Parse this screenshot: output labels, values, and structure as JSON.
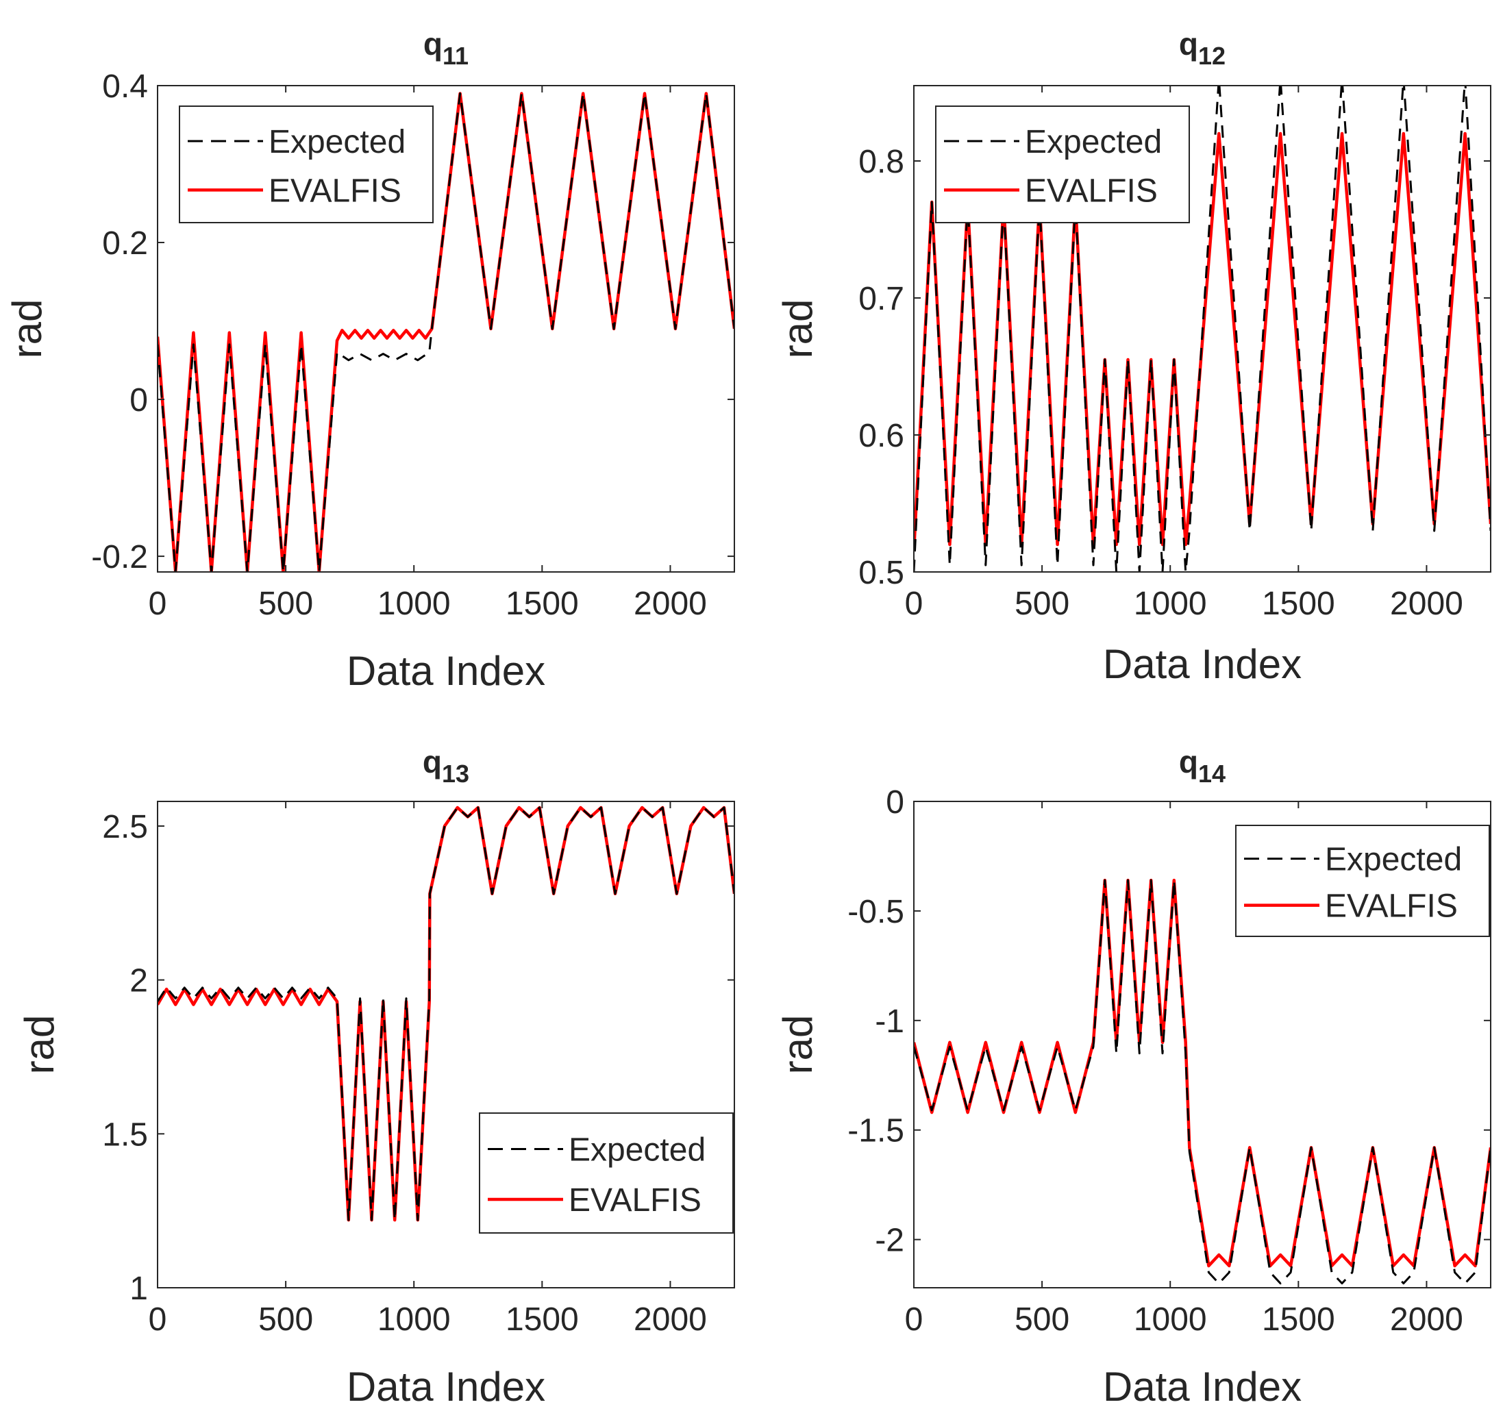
{
  "colors": {
    "expected": "#000000",
    "evalfis": "#ff0000",
    "axes": "#262626"
  },
  "chart_data": [
    {
      "type": "line",
      "title": "q",
      "title_sub": "11",
      "xlabel": "Data Index",
      "ylabel": "rad",
      "xlim": [
        0,
        2250
      ],
      "ylim": [
        -0.22,
        0.4
      ],
      "xticks": [
        0,
        500,
        1000,
        1500,
        2000
      ],
      "xtick_labels": [
        "0",
        "500",
        "1000",
        "1500",
        "2000"
      ],
      "yticks": [
        -0.2,
        0,
        0.2,
        0.4
      ],
      "ytick_labels": [
        "-0.2",
        "0",
        "0.2",
        "0.4"
      ],
      "legend_position": "top-left",
      "series": [
        {
          "name": "Expected",
          "style": "dashed",
          "x": [
            0,
            70,
            140,
            210,
            280,
            350,
            420,
            490,
            560,
            630,
            700,
            745,
            790,
            835,
            880,
            925,
            970,
            1015,
            1060,
            1070,
            1180,
            1300,
            1420,
            1540,
            1660,
            1780,
            1900,
            2020,
            2140,
            2250
          ],
          "y": [
            0.07,
            -0.22,
            0.07,
            -0.22,
            0.07,
            -0.22,
            0.07,
            -0.22,
            0.07,
            -0.22,
            0.06,
            0.05,
            0.058,
            0.05,
            0.058,
            0.05,
            0.058,
            0.05,
            0.06,
            0.09,
            0.39,
            0.09,
            0.39,
            0.09,
            0.39,
            0.09,
            0.39,
            0.09,
            0.39,
            0.09
          ]
        },
        {
          "name": "EVALFIS",
          "style": "solid",
          "x": [
            0,
            70,
            140,
            210,
            280,
            350,
            420,
            490,
            560,
            630,
            700,
            720,
            745,
            770,
            795,
            820,
            845,
            870,
            895,
            920,
            945,
            970,
            995,
            1020,
            1045,
            1070,
            1180,
            1300,
            1420,
            1540,
            1660,
            1780,
            1900,
            2020,
            2140,
            2250
          ],
          "y": [
            0.08,
            -0.22,
            0.085,
            -0.22,
            0.085,
            -0.22,
            0.085,
            -0.22,
            0.085,
            -0.22,
            0.075,
            0.088,
            0.078,
            0.088,
            0.078,
            0.088,
            0.078,
            0.088,
            0.078,
            0.088,
            0.078,
            0.088,
            0.078,
            0.088,
            0.078,
            0.09,
            0.39,
            0.09,
            0.39,
            0.09,
            0.39,
            0.09,
            0.39,
            0.09,
            0.39,
            0.09
          ]
        }
      ]
    },
    {
      "type": "line",
      "title": "q",
      "title_sub": "12",
      "xlabel": "Data Index",
      "ylabel": "rad",
      "xlim": [
        0,
        2250
      ],
      "ylim": [
        0.5,
        0.855
      ],
      "xticks": [
        0,
        500,
        1000,
        1500,
        2000
      ],
      "xtick_labels": [
        "0",
        "500",
        "1000",
        "1500",
        "2000"
      ],
      "yticks": [
        0.5,
        0.6,
        0.7,
        0.8
      ],
      "ytick_labels": [
        "0.5",
        "0.6",
        "0.7",
        "0.8"
      ],
      "legend_position": "top-left",
      "series": [
        {
          "name": "Expected",
          "style": "dashed",
          "x": [
            0,
            70,
            140,
            210,
            280,
            350,
            420,
            490,
            560,
            630,
            700,
            745,
            790,
            835,
            880,
            925,
            970,
            1015,
            1060,
            1075,
            1190,
            1310,
            1430,
            1550,
            1670,
            1790,
            1910,
            2030,
            2150,
            2250
          ],
          "y": [
            0.5,
            0.77,
            0.505,
            0.77,
            0.505,
            0.77,
            0.505,
            0.77,
            0.505,
            0.77,
            0.505,
            0.655,
            0.5,
            0.655,
            0.5,
            0.655,
            0.5,
            0.655,
            0.5,
            0.53,
            0.86,
            0.53,
            0.86,
            0.53,
            0.86,
            0.53,
            0.86,
            0.53,
            0.86,
            0.53
          ]
        },
        {
          "name": "EVALFIS",
          "style": "solid",
          "x": [
            0,
            70,
            140,
            210,
            280,
            350,
            420,
            490,
            560,
            630,
            700,
            745,
            790,
            835,
            880,
            925,
            970,
            1015,
            1060,
            1075,
            1190,
            1310,
            1430,
            1550,
            1670,
            1790,
            1910,
            2030,
            2150,
            2250
          ],
          "y": [
            0.515,
            0.77,
            0.52,
            0.77,
            0.52,
            0.77,
            0.52,
            0.77,
            0.52,
            0.77,
            0.52,
            0.655,
            0.52,
            0.655,
            0.52,
            0.655,
            0.52,
            0.655,
            0.52,
            0.55,
            0.82,
            0.535,
            0.82,
            0.535,
            0.82,
            0.535,
            0.82,
            0.535,
            0.82,
            0.535
          ]
        }
      ]
    },
    {
      "type": "line",
      "title": "q",
      "title_sub": "13",
      "xlabel": "Data Index",
      "ylabel": "rad",
      "xlim": [
        0,
        2250
      ],
      "ylim": [
        1.0,
        2.58
      ],
      "xticks": [
        0,
        500,
        1000,
        1500,
        2000
      ],
      "xtick_labels": [
        "0",
        "500",
        "1000",
        "1500",
        "2000"
      ],
      "yticks": [
        1,
        1.5,
        2,
        2.5
      ],
      "ytick_labels": [
        "1",
        "1.5",
        "2",
        "2.5"
      ],
      "legend_position": "bottom-right",
      "series": [
        {
          "name": "Expected",
          "style": "dashed",
          "x": [
            0,
            35,
            70,
            105,
            140,
            175,
            210,
            245,
            280,
            315,
            350,
            385,
            420,
            455,
            490,
            525,
            560,
            595,
            630,
            665,
            700,
            745,
            790,
            835,
            880,
            925,
            970,
            1015,
            1060,
            1062,
            1120,
            1170,
            1210,
            1250,
            1305,
            1360,
            1410,
            1450,
            1490,
            1545,
            1600,
            1650,
            1690,
            1730,
            1785,
            1840,
            1890,
            1930,
            1970,
            2025,
            2080,
            2130,
            2170,
            2210,
            2250
          ],
          "y": [
            1.93,
            1.975,
            1.94,
            1.975,
            1.94,
            1.975,
            1.94,
            1.975,
            1.94,
            1.975,
            1.94,
            1.975,
            1.94,
            1.975,
            1.94,
            1.975,
            1.94,
            1.975,
            1.94,
            1.975,
            1.94,
            1.22,
            1.94,
            1.22,
            1.94,
            1.22,
            1.94,
            1.22,
            1.94,
            2.28,
            2.5,
            2.56,
            2.53,
            2.56,
            2.28,
            2.5,
            2.56,
            2.53,
            2.56,
            2.28,
            2.5,
            2.56,
            2.53,
            2.56,
            2.28,
            2.5,
            2.56,
            2.53,
            2.56,
            2.28,
            2.5,
            2.56,
            2.53,
            2.56,
            2.28
          ]
        },
        {
          "name": "EVALFIS",
          "style": "solid",
          "x": [
            0,
            35,
            70,
            105,
            140,
            175,
            210,
            245,
            280,
            315,
            350,
            385,
            420,
            455,
            490,
            525,
            560,
            595,
            630,
            665,
            700,
            745,
            790,
            835,
            880,
            925,
            970,
            1015,
            1060,
            1062,
            1120,
            1170,
            1210,
            1250,
            1305,
            1360,
            1410,
            1450,
            1490,
            1545,
            1600,
            1650,
            1690,
            1730,
            1785,
            1840,
            1890,
            1930,
            1970,
            2025,
            2080,
            2130,
            2170,
            2210,
            2250
          ],
          "y": [
            1.92,
            1.97,
            1.92,
            1.97,
            1.92,
            1.97,
            1.92,
            1.97,
            1.92,
            1.97,
            1.92,
            1.97,
            1.92,
            1.97,
            1.92,
            1.97,
            1.92,
            1.97,
            1.92,
            1.97,
            1.93,
            1.22,
            1.93,
            1.22,
            1.93,
            1.22,
            1.93,
            1.22,
            1.93,
            2.28,
            2.5,
            2.56,
            2.53,
            2.56,
            2.28,
            2.5,
            2.56,
            2.53,
            2.56,
            2.28,
            2.5,
            2.56,
            2.53,
            2.56,
            2.28,
            2.5,
            2.56,
            2.53,
            2.56,
            2.28,
            2.5,
            2.56,
            2.53,
            2.56,
            2.28
          ]
        }
      ]
    },
    {
      "type": "line",
      "title": "q",
      "title_sub": "14",
      "xlabel": "Data Index",
      "ylabel": "rad",
      "xlim": [
        0,
        2250
      ],
      "ylim": [
        -2.22,
        0
      ],
      "xticks": [
        0,
        500,
        1000,
        1500,
        2000
      ],
      "xtick_labels": [
        "0",
        "500",
        "1000",
        "1500",
        "2000"
      ],
      "yticks": [
        -2,
        -1.5,
        -1,
        -0.5,
        0
      ],
      "ytick_labels": [
        "-2",
        "-1.5",
        "-1",
        "-0.5",
        "0"
      ],
      "legend_position": "top-right",
      "series": [
        {
          "name": "Expected",
          "style": "dashed",
          "x": [
            0,
            70,
            140,
            210,
            280,
            350,
            420,
            490,
            560,
            630,
            700,
            745,
            790,
            835,
            880,
            925,
            970,
            1015,
            1060,
            1075,
            1150,
            1190,
            1230,
            1310,
            1390,
            1430,
            1470,
            1550,
            1630,
            1670,
            1710,
            1790,
            1870,
            1910,
            1950,
            2030,
            2110,
            2150,
            2190,
            2250
          ],
          "y": [
            -1.12,
            -1.41,
            -1.12,
            -1.41,
            -1.12,
            -1.41,
            -1.12,
            -1.41,
            -1.12,
            -1.41,
            -1.12,
            -0.36,
            -1.15,
            -0.36,
            -1.15,
            -0.36,
            -1.15,
            -0.36,
            -1.15,
            -1.6,
            -2.15,
            -2.2,
            -2.15,
            -1.58,
            -2.15,
            -2.2,
            -2.15,
            -1.58,
            -2.15,
            -2.2,
            -2.15,
            -1.58,
            -2.15,
            -2.2,
            -2.15,
            -1.58,
            -2.15,
            -2.2,
            -2.15,
            -1.58
          ]
        },
        {
          "name": "EVALFIS",
          "style": "solid",
          "x": [
            0,
            70,
            140,
            210,
            280,
            350,
            420,
            490,
            560,
            630,
            700,
            745,
            790,
            835,
            880,
            925,
            970,
            1015,
            1060,
            1075,
            1150,
            1190,
            1230,
            1310,
            1390,
            1430,
            1470,
            1550,
            1630,
            1670,
            1710,
            1790,
            1870,
            1910,
            1950,
            2030,
            2110,
            2150,
            2190,
            2250
          ],
          "y": [
            -1.1,
            -1.42,
            -1.1,
            -1.42,
            -1.1,
            -1.42,
            -1.1,
            -1.42,
            -1.1,
            -1.42,
            -1.1,
            -0.36,
            -1.1,
            -0.36,
            -1.1,
            -0.36,
            -1.1,
            -0.36,
            -1.1,
            -1.58,
            -2.12,
            -2.07,
            -2.12,
            -1.58,
            -2.12,
            -2.07,
            -2.12,
            -1.58,
            -2.12,
            -2.07,
            -2.12,
            -1.58,
            -2.12,
            -2.07,
            -2.12,
            -1.58,
            -2.12,
            -2.07,
            -2.12,
            -1.58
          ]
        }
      ]
    }
  ]
}
